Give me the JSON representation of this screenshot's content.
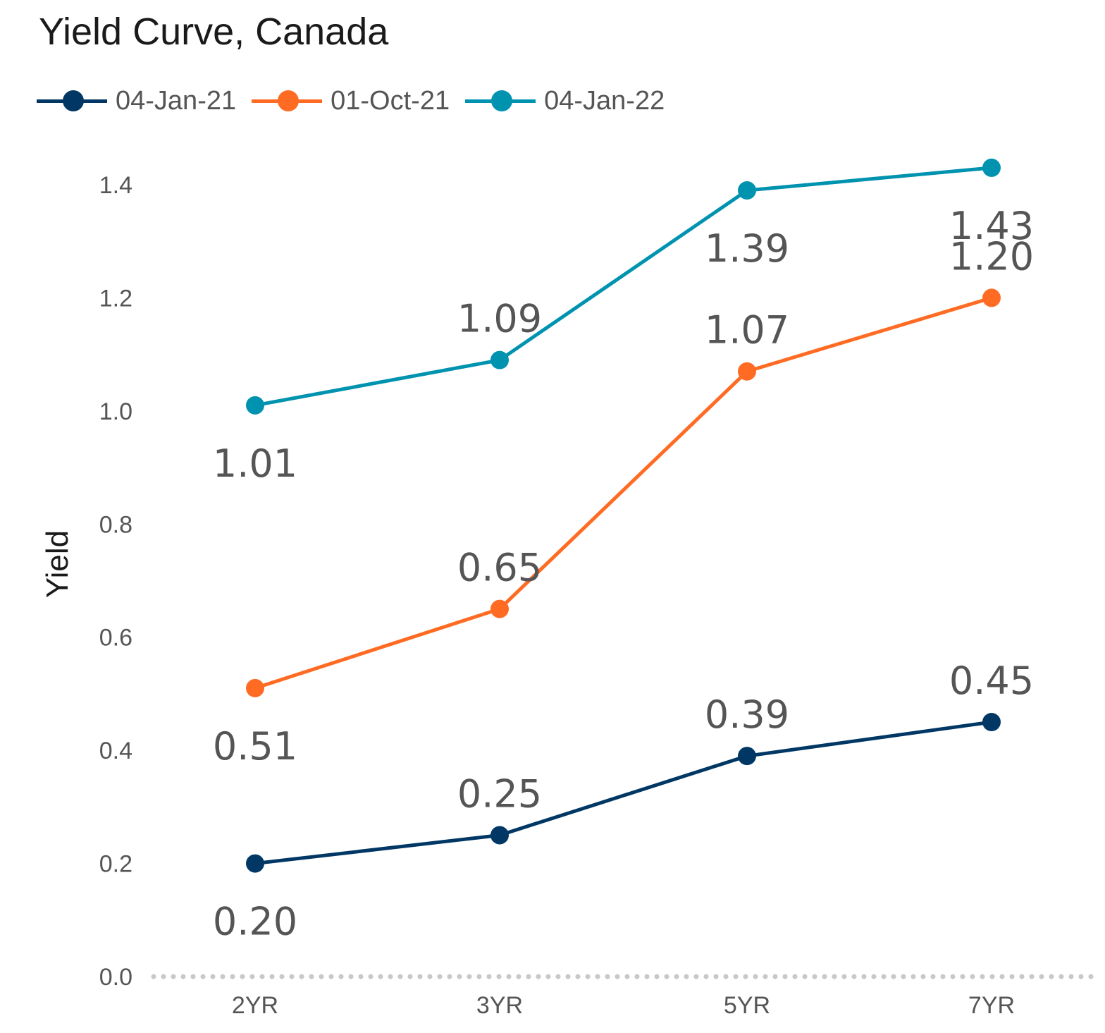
{
  "chart_data": {
    "type": "line",
    "title": "Yield Curve, Canada",
    "xlabel": "",
    "ylabel": "Yield",
    "categories": [
      "2YR",
      "3YR",
      "5YR",
      "7YR"
    ],
    "ylim": [
      0,
      1.4
    ],
    "yticks": [
      "0.0",
      "0.2",
      "0.4",
      "0.6",
      "0.8",
      "1.0",
      "1.2",
      "1.4"
    ],
    "grid": false,
    "baseline": "dotted",
    "legend_position": "top-left",
    "series": [
      {
        "name": "04-Jan-21",
        "color": "#003764",
        "values": [
          0.2,
          0.25,
          0.39,
          0.45
        ],
        "labels": [
          "0.20",
          "0.25",
          "0.39",
          "0.45"
        ],
        "label_pos": [
          "below",
          "above",
          "above",
          "above"
        ]
      },
      {
        "name": "01-Oct-21",
        "color": "#FF6B23",
        "values": [
          0.51,
          0.65,
          1.07,
          1.2
        ],
        "labels": [
          "0.51",
          "0.65",
          "1.07",
          "1.20"
        ],
        "label_pos": [
          "below",
          "above",
          "above",
          "above"
        ]
      },
      {
        "name": "04-Jan-22",
        "color": "#0093B0",
        "values": [
          1.01,
          1.09,
          1.39,
          1.43
        ],
        "labels": [
          "1.01",
          "1.09",
          "1.39",
          "1.43"
        ],
        "label_pos": [
          "below",
          "above",
          "below",
          "below"
        ]
      }
    ]
  },
  "colors": {
    "baseline": "#c8c8c8",
    "text": "#555555",
    "title": "#1a1a1a"
  }
}
